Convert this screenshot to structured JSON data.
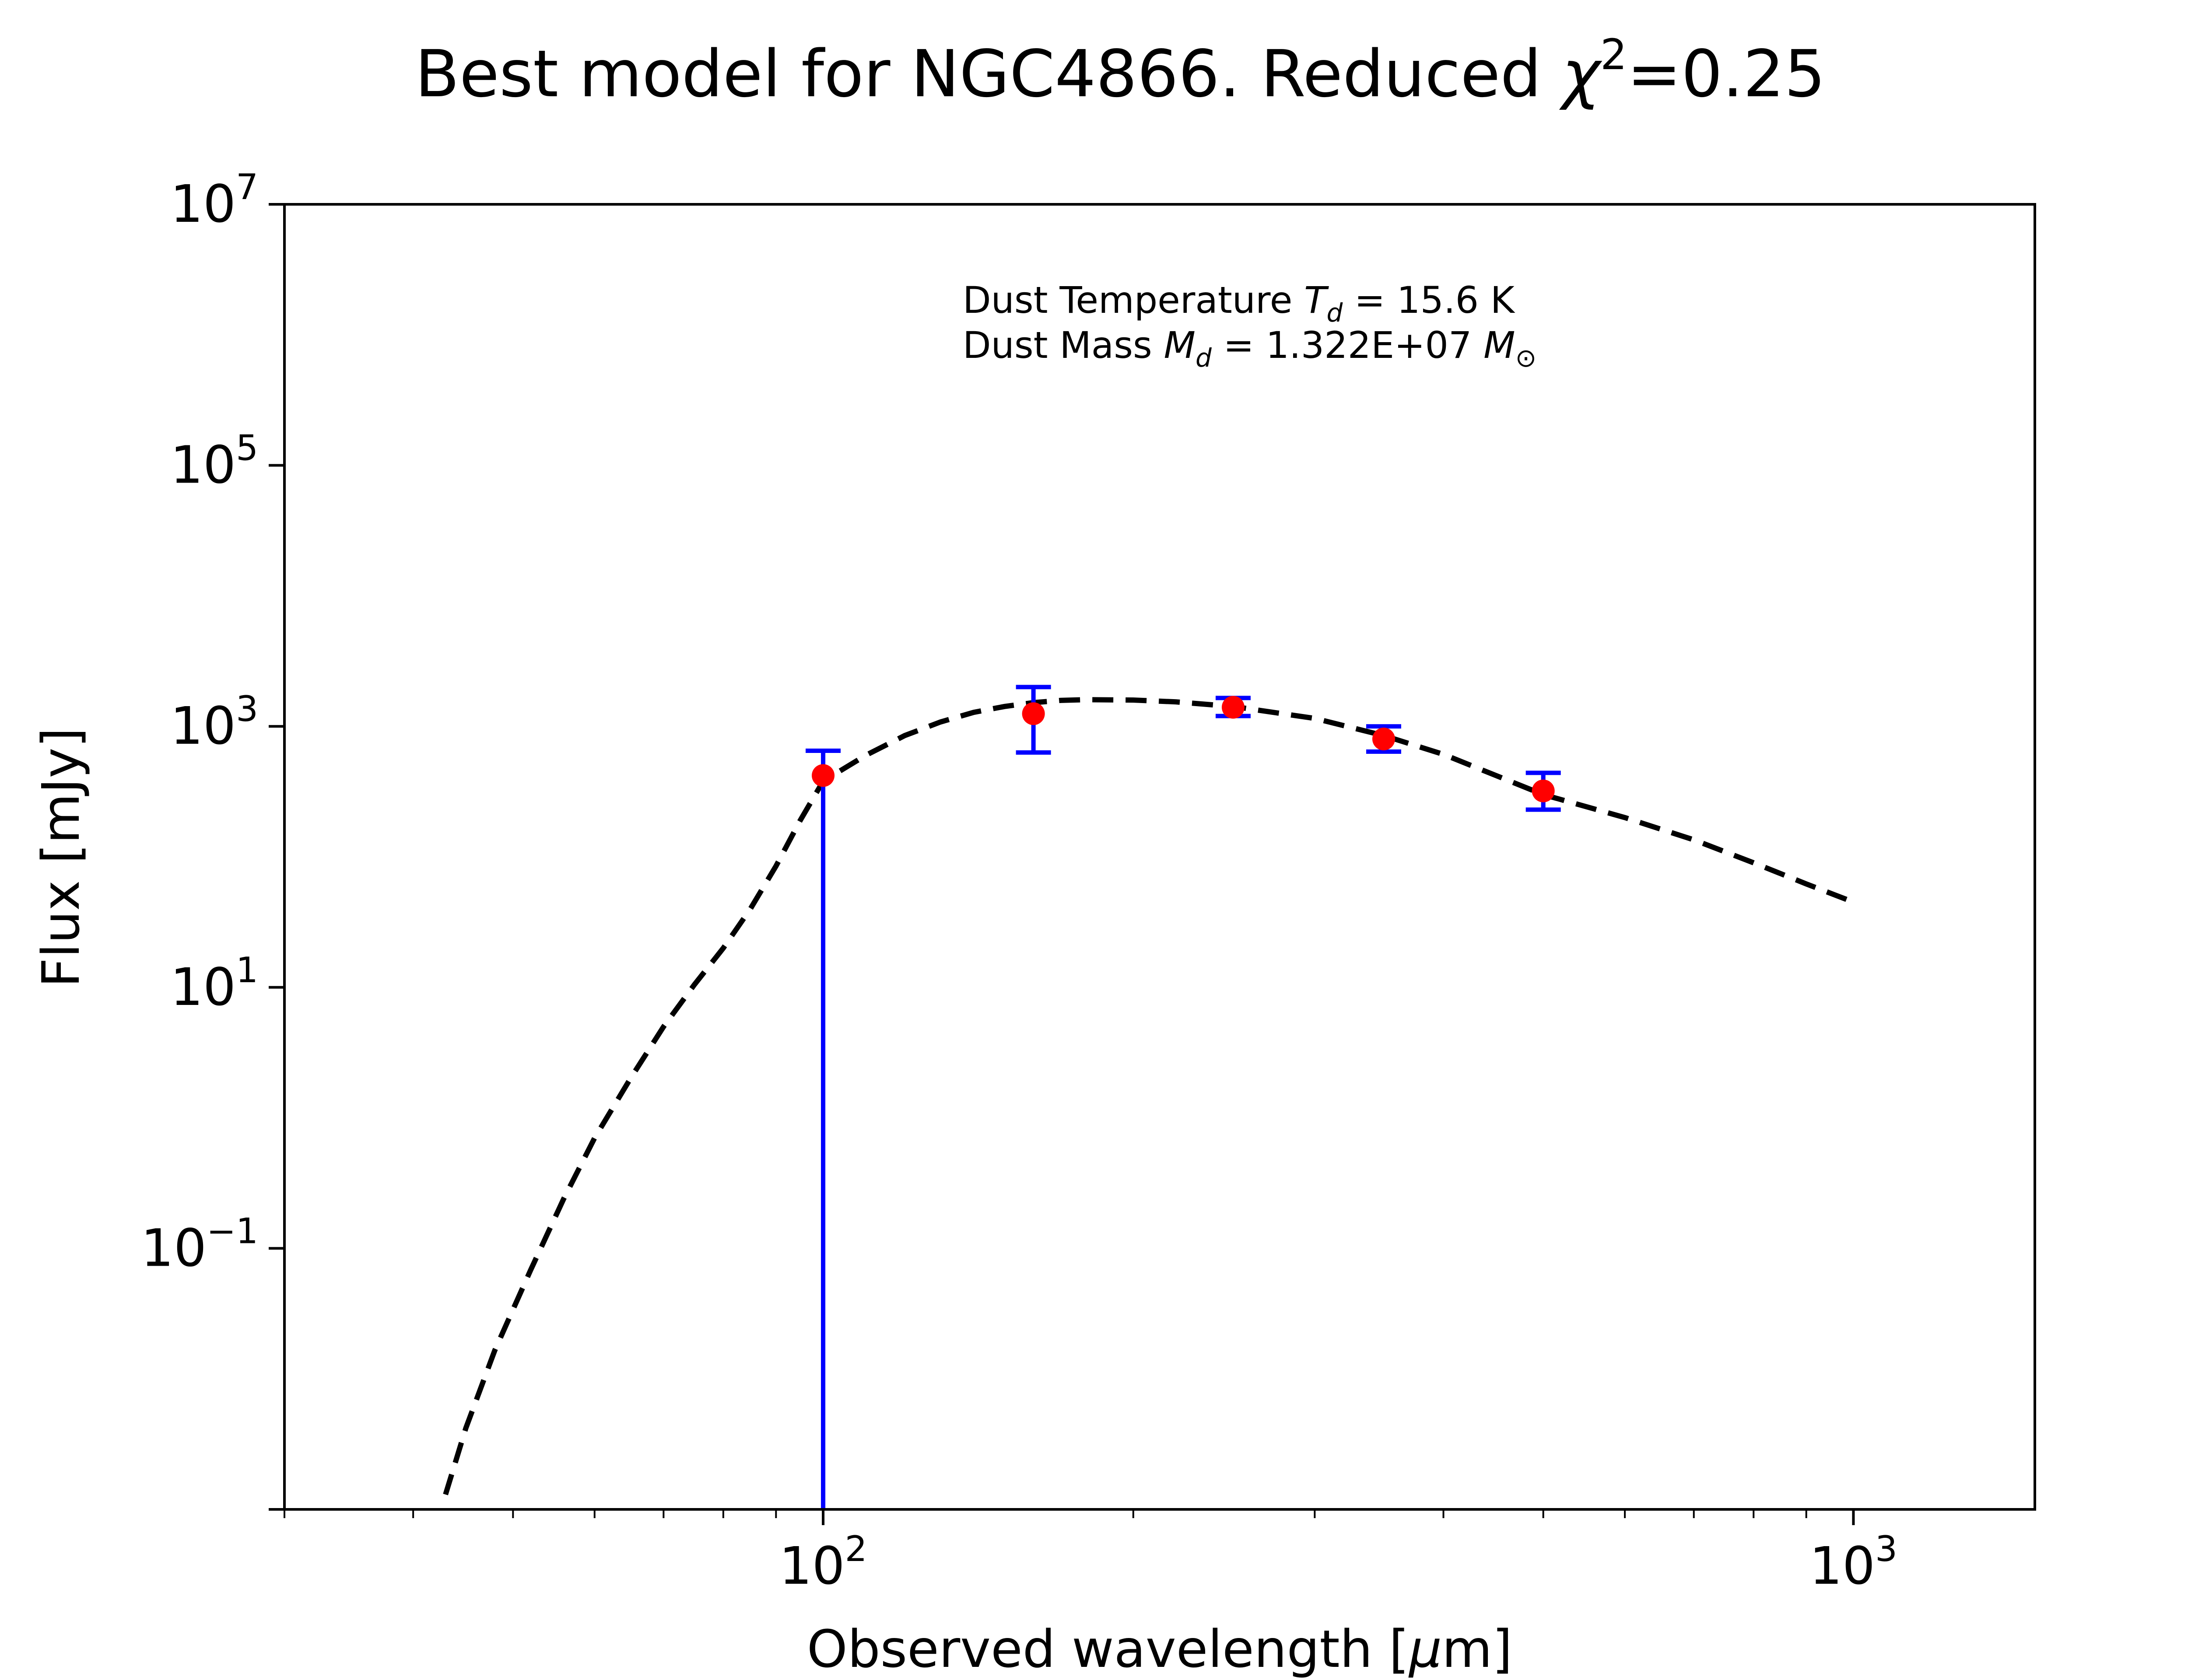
{
  "chart_data": {
    "type": "scatter",
    "title_main": "Best model for NGC4866. Reduced ",
    "title_chi": "χ",
    "title_chi_exp": "2",
    "title_value": "=0.25",
    "xlabel_main": "Observed wavelength [",
    "xlabel_mu": "μ",
    "xlabel_unit": "m]",
    "ylabel": "Flux [mJy]",
    "x_scale": "log",
    "y_scale": "log",
    "xlim": [
      30,
      1500
    ],
    "ylim": [
      0.001,
      10000000
    ],
    "x_ticks": [
      {
        "value": 100,
        "base": "10",
        "exp": "2"
      },
      {
        "value": 1000,
        "base": "10",
        "exp": "3"
      }
    ],
    "y_ticks": [
      {
        "value": 10000000,
        "base": "10",
        "exp": "7"
      },
      {
        "value": 100000,
        "base": "10",
        "exp": "5"
      },
      {
        "value": 1000,
        "base": "10",
        "exp": "3"
      },
      {
        "value": 10,
        "base": "10",
        "exp": "1"
      },
      {
        "value": 0.1,
        "base": "10",
        "exp": "−1"
      }
    ],
    "annotation": {
      "line1_text": "Dust Temperature ",
      "line1_sym": "T",
      "line1_sub": "d",
      "line1_value": " = 15.6 K",
      "line2_text": "Dust Mass ",
      "line2_sym": "M",
      "line2_sub": "d",
      "line2_value": " = 1.322E+07 ",
      "line2_unit": "M",
      "line2_unit_sub": "⊙"
    },
    "observations": [
      {
        "x": 100,
        "y": 420,
        "yerr_low": 420,
        "yerr_high": 230
      },
      {
        "x": 160,
        "y": 1250,
        "yerr_low": 620,
        "yerr_high": 750
      },
      {
        "x": 250,
        "y": 1400,
        "yerr_low": 200,
        "yerr_high": 250
      },
      {
        "x": 350,
        "y": 800,
        "yerr_low": 160,
        "yerr_high": 200
      },
      {
        "x": 500,
        "y": 320,
        "yerr_low": 90,
        "yerr_high": 120
      }
    ],
    "model_curve": {
      "style": "dashed",
      "color": "#000000",
      "points": [
        [
          43,
          0.0013
        ],
        [
          45,
          0.0042
        ],
        [
          48,
          0.0165
        ],
        [
          52,
          0.068
        ],
        [
          56,
          0.24
        ],
        [
          60,
          0.7
        ],
        [
          65,
          2.0
        ],
        [
          70,
          5.0
        ],
        [
          75,
          10.5
        ],
        [
          80,
          20.0
        ],
        [
          85,
          40.0
        ],
        [
          90,
          85.0
        ],
        [
          95,
          190.0
        ],
        [
          100,
          380
        ],
        [
          110,
          600
        ],
        [
          120,
          850
        ],
        [
          130,
          1080
        ],
        [
          140,
          1280
        ],
        [
          150,
          1420
        ],
        [
          160,
          1520
        ],
        [
          170,
          1580
        ],
        [
          180,
          1600
        ],
        [
          200,
          1590
        ],
        [
          220,
          1540
        ],
        [
          250,
          1420
        ],
        [
          300,
          1150
        ],
        [
          350,
          850
        ],
        [
          400,
          610
        ],
        [
          500,
          300
        ],
        [
          600,
          200
        ],
        [
          700,
          135
        ],
        [
          800,
          90
        ],
        [
          900,
          62
        ],
        [
          1000,
          45
        ]
      ]
    },
    "colors": {
      "points": "#ff0000",
      "errorbars": "#0000ff",
      "model": "#000000"
    }
  }
}
